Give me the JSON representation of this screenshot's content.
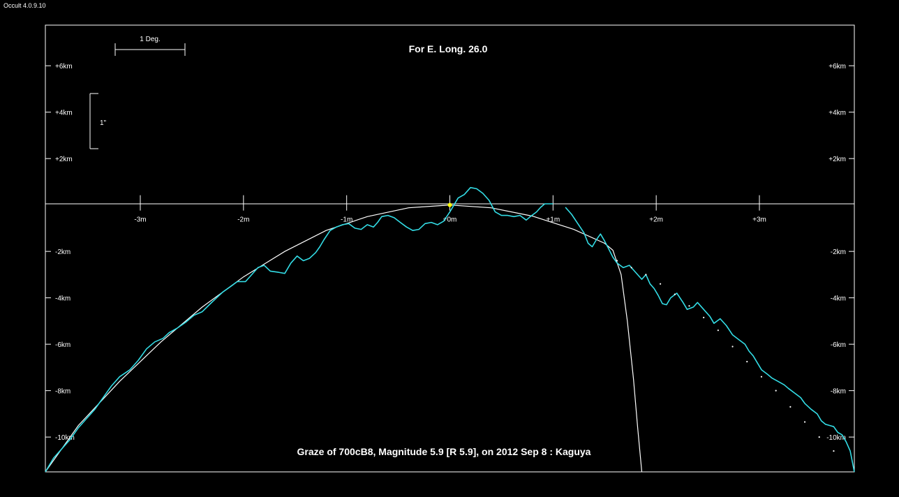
{
  "window": {
    "title": "Occult 4.0.9.10"
  },
  "chart_data": {
    "type": "line",
    "title": "For E. Long. 26.0",
    "caption": "Graze of  700cB8,  Magnitude 5.9 [R 5.9],  on 2012 Sep  8  :  Kaguya",
    "x_unit": "minutes",
    "y_unit": "km",
    "xlim": [
      -3.92,
      3.92
    ],
    "ylim": [
      -11.5,
      7.75
    ],
    "x_ticks": [
      {
        "value": -3,
        "label": "-3m"
      },
      {
        "value": -2,
        "label": "-2m"
      },
      {
        "value": -1,
        "label": "-1m"
      },
      {
        "value": 0,
        "label": "+0m"
      },
      {
        "value": 1,
        "label": "+1m"
      },
      {
        "value": 2,
        "label": "+2m"
      },
      {
        "value": 3,
        "label": "+3m"
      }
    ],
    "y_ticks": [
      {
        "value": 6,
        "label": "+6km"
      },
      {
        "value": 4,
        "label": "+4km"
      },
      {
        "value": 2,
        "label": "+2km"
      },
      {
        "value": -2,
        "label": "-2km"
      },
      {
        "value": -4,
        "label": "-4km"
      },
      {
        "value": -6,
        "label": "-6km"
      },
      {
        "value": -8,
        "label": "-8km"
      },
      {
        "value": -10,
        "label": "-10km"
      }
    ],
    "scale_bar_degree": {
      "label": "1 Deg.",
      "length_minutes": 0.68
    },
    "scale_bar_arcsec": {
      "label": "1\"",
      "length_km": 2.45
    },
    "series": [
      {
        "color": "#33dde6",
        "points": [
          [
            -3.92,
            -11.5
          ],
          [
            -3.84,
            -10.9
          ],
          [
            -3.76,
            -10.5
          ],
          [
            -3.68,
            -10.1
          ],
          [
            -3.6,
            -9.6
          ],
          [
            -3.52,
            -9.2
          ],
          [
            -3.44,
            -8.8
          ],
          [
            -3.36,
            -8.3
          ],
          [
            -3.28,
            -7.8
          ],
          [
            -3.2,
            -7.4
          ],
          [
            -3.1,
            -7.1
          ],
          [
            -3.02,
            -6.7
          ],
          [
            -2.94,
            -6.2
          ],
          [
            -2.86,
            -5.9
          ],
          [
            -2.78,
            -5.75
          ],
          [
            -2.72,
            -5.5
          ],
          [
            -2.64,
            -5.3
          ],
          [
            -2.56,
            -5.05
          ],
          [
            -2.48,
            -4.75
          ],
          [
            -2.4,
            -4.6
          ],
          [
            -2.32,
            -4.25
          ],
          [
            -2.26,
            -4.0
          ],
          [
            -2.2,
            -3.75
          ],
          [
            -2.12,
            -3.5
          ],
          [
            -2.06,
            -3.3
          ],
          [
            -1.98,
            -3.3
          ],
          [
            -1.92,
            -3.0
          ],
          [
            -1.86,
            -2.7
          ],
          [
            -1.8,
            -2.6
          ],
          [
            -1.74,
            -2.85
          ],
          [
            -1.66,
            -2.9
          ],
          [
            -1.6,
            -2.95
          ],
          [
            -1.54,
            -2.5
          ],
          [
            -1.48,
            -2.2
          ],
          [
            -1.42,
            -2.4
          ],
          [
            -1.36,
            -2.3
          ],
          [
            -1.3,
            -2.05
          ],
          [
            -1.26,
            -1.8
          ],
          [
            -1.22,
            -1.5
          ],
          [
            -1.16,
            -1.1
          ],
          [
            -1.1,
            -0.95
          ],
          [
            -1.04,
            -0.85
          ],
          [
            -0.98,
            -0.8
          ],
          [
            -0.92,
            -1.0
          ],
          [
            -0.86,
            -1.05
          ],
          [
            -0.8,
            -0.85
          ],
          [
            -0.74,
            -0.95
          ],
          [
            -0.7,
            -0.75
          ],
          [
            -0.66,
            -0.5
          ],
          [
            -0.6,
            -0.45
          ],
          [
            -0.54,
            -0.55
          ],
          [
            -0.48,
            -0.75
          ],
          [
            -0.42,
            -0.95
          ],
          [
            -0.36,
            -1.1
          ],
          [
            -0.3,
            -1.05
          ],
          [
            -0.24,
            -0.8
          ],
          [
            -0.18,
            -0.75
          ],
          [
            -0.12,
            -0.85
          ],
          [
            -0.06,
            -0.7
          ],
          [
            0.0,
            -0.3
          ],
          [
            0.08,
            0.3
          ],
          [
            0.14,
            0.45
          ],
          [
            0.2,
            0.75
          ],
          [
            0.26,
            0.7
          ],
          [
            0.32,
            0.5
          ],
          [
            0.38,
            0.2
          ],
          [
            0.44,
            -0.3
          ],
          [
            0.5,
            -0.45
          ],
          [
            0.56,
            -0.45
          ],
          [
            0.62,
            -0.5
          ],
          [
            0.68,
            -0.45
          ],
          [
            0.74,
            -0.65
          ],
          [
            0.78,
            -0.5
          ],
          [
            0.84,
            -0.3
          ],
          [
            0.88,
            -0.1
          ],
          [
            0.92,
            0.05
          ],
          [
            1.0,
            0.05
          ]
        ]
      },
      {
        "color": "#33dde6",
        "points": [
          [
            1.12,
            -0.1
          ],
          [
            1.18,
            -0.4
          ],
          [
            1.24,
            -0.8
          ],
          [
            1.3,
            -1.2
          ],
          [
            1.34,
            -1.65
          ],
          [
            1.38,
            -1.8
          ],
          [
            1.42,
            -1.5
          ],
          [
            1.46,
            -1.25
          ],
          [
            1.5,
            -1.55
          ],
          [
            1.54,
            -1.9
          ],
          [
            1.58,
            -2.25
          ],
          [
            1.62,
            -2.5
          ],
          [
            1.68,
            -2.7
          ],
          [
            1.74,
            -2.6
          ],
          [
            1.8,
            -2.9
          ],
          [
            1.86,
            -3.2
          ],
          [
            1.9,
            -3.0
          ],
          [
            1.94,
            -3.4
          ],
          [
            1.98,
            -3.6
          ],
          [
            2.02,
            -3.9
          ],
          [
            2.06,
            -4.25
          ],
          [
            2.1,
            -4.3
          ],
          [
            2.14,
            -4.0
          ],
          [
            2.2,
            -3.8
          ],
          [
            2.26,
            -4.2
          ],
          [
            2.3,
            -4.5
          ],
          [
            2.36,
            -4.4
          ],
          [
            2.4,
            -4.2
          ],
          [
            2.46,
            -4.5
          ],
          [
            2.52,
            -4.8
          ],
          [
            2.56,
            -5.1
          ],
          [
            2.62,
            -4.9
          ],
          [
            2.68,
            -5.2
          ],
          [
            2.74,
            -5.6
          ],
          [
            2.8,
            -5.8
          ],
          [
            2.86,
            -6.0
          ],
          [
            2.9,
            -6.3
          ],
          [
            2.94,
            -6.5
          ],
          [
            2.98,
            -6.8
          ],
          [
            3.02,
            -7.1
          ],
          [
            3.08,
            -7.3
          ],
          [
            3.12,
            -7.45
          ],
          [
            3.18,
            -7.6
          ],
          [
            3.24,
            -7.75
          ],
          [
            3.28,
            -7.9
          ],
          [
            3.34,
            -8.1
          ],
          [
            3.4,
            -8.3
          ],
          [
            3.44,
            -8.55
          ],
          [
            3.5,
            -8.8
          ],
          [
            3.56,
            -9.0
          ],
          [
            3.6,
            -9.3
          ],
          [
            3.64,
            -9.45
          ],
          [
            3.68,
            -9.5
          ],
          [
            3.72,
            -9.55
          ],
          [
            3.76,
            -9.8
          ],
          [
            3.8,
            -9.9
          ],
          [
            3.84,
            -10.2
          ],
          [
            3.88,
            -10.6
          ],
          [
            3.92,
            -11.5
          ]
        ]
      }
    ],
    "limb_curve": {
      "color": "#ffffff",
      "points": [
        [
          -3.92,
          -11.5
        ],
        [
          -3.6,
          -9.5
        ],
        [
          -3.2,
          -7.6
        ],
        [
          -2.8,
          -5.9
        ],
        [
          -2.4,
          -4.4
        ],
        [
          -2.0,
          -3.1
        ],
        [
          -1.6,
          -2.0
        ],
        [
          -1.2,
          -1.1
        ],
        [
          -0.8,
          -0.5
        ],
        [
          -0.4,
          -0.12
        ],
        [
          0.0,
          0.0
        ],
        [
          0.4,
          -0.12
        ],
        [
          0.8,
          -0.48
        ],
        [
          1.2,
          -1.05
        ],
        [
          1.5,
          -1.65
        ],
        [
          1.58,
          -1.95
        ],
        [
          1.66,
          -3.0
        ],
        [
          1.72,
          -5.0
        ],
        [
          1.78,
          -7.5
        ],
        [
          1.82,
          -9.6
        ],
        [
          1.86,
          -11.5
        ]
      ]
    },
    "dotted_curve": {
      "color": "#ffffff",
      "points": [
        [
          1.62,
          -2.4
        ],
        [
          1.76,
          -2.7
        ],
        [
          1.9,
          -3.0
        ],
        [
          2.04,
          -3.4
        ],
        [
          2.18,
          -3.85
        ],
        [
          2.32,
          -4.35
        ],
        [
          2.46,
          -4.85
        ],
        [
          2.6,
          -5.4
        ],
        [
          2.74,
          -6.1
        ],
        [
          2.88,
          -6.75
        ],
        [
          3.02,
          -7.4
        ],
        [
          3.16,
          -8.0
        ],
        [
          3.3,
          -8.7
        ],
        [
          3.44,
          -9.35
        ],
        [
          3.58,
          -10.0
        ],
        [
          3.72,
          -10.6
        ]
      ]
    },
    "center_point": {
      "x": 0,
      "y": 0,
      "color": "#ffff00"
    },
    "grid": false
  }
}
